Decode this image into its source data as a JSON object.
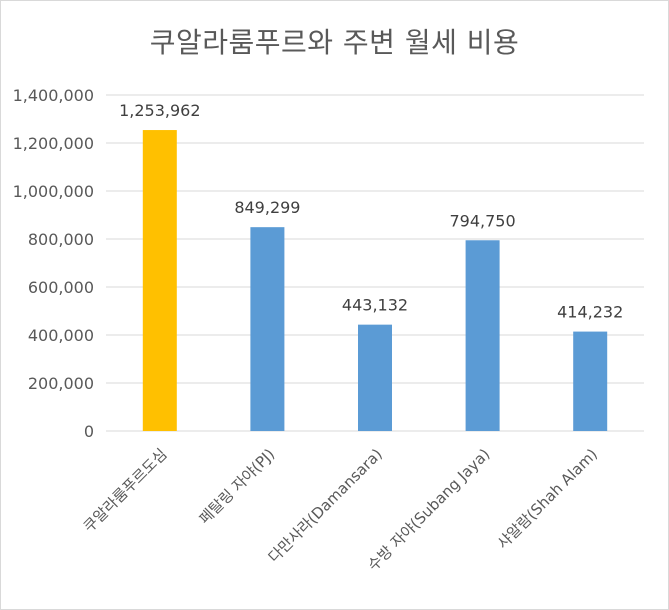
{
  "chart_data": {
    "type": "bar",
    "title": "쿠알라룸푸르와 주변 월세 비용",
    "categories": [
      "쿠알라룸푸르도심",
      "페탈링 자야(PJ)",
      "다만사라(Damansara)",
      "수방 자야(Subang Jaya)",
      "샤알람(Shah Alam)"
    ],
    "values": [
      1253962,
      849299,
      443132,
      794750,
      414232
    ],
    "data_labels": [
      "1,253,962",
      "849,299",
      "443,132",
      "794,750",
      "414,232"
    ],
    "bar_colors": [
      "#FFC000",
      "#5B9BD5",
      "#5B9BD5",
      "#5B9BD5",
      "#5B9BD5"
    ],
    "ylim": [
      0,
      1400000
    ],
    "yticks": [
      0,
      200000,
      400000,
      600000,
      800000,
      1000000,
      1200000,
      1400000
    ],
    "ytick_labels": [
      "0",
      "200,000",
      "400,000",
      "600,000",
      "800,000",
      "1,000,000",
      "1,200,000",
      "1,400,000"
    ],
    "grid": true,
    "legend": "none",
    "gridline_color": "#d9d9d9",
    "text_color": "#595959",
    "label_color": "#404040"
  }
}
